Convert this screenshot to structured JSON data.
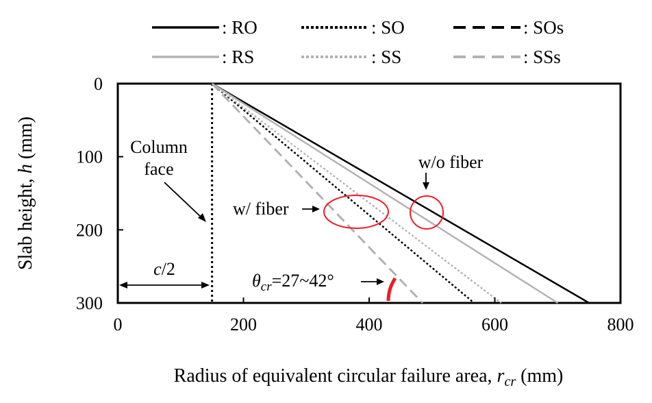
{
  "chart_data": {
    "type": "line",
    "xlabel": "Radius of equivalent circular failure area, ",
    "xlabel_symbol": "r",
    "xlabel_sub": "cr",
    "xlabel_unit": " (mm)",
    "ylabel": "Slab height, ",
    "ylabel_symbol": "h",
    "ylabel_unit": " (mm)",
    "xlim": [
      0,
      800
    ],
    "ylim": [
      0,
      300
    ],
    "y_inverted": true,
    "grid": false,
    "legend_position": "top",
    "xticks": [
      "0",
      "200",
      "400",
      "600",
      "800"
    ],
    "yticks": [
      "0",
      "100",
      "200",
      "300"
    ],
    "series": [
      {
        "name": ": RO",
        "x": [
          150,
          750
        ],
        "y": [
          0,
          300
        ],
        "color": "#000000",
        "style": "solid"
      },
      {
        "name": ": SO",
        "x": [
          150,
          567
        ],
        "y": [
          0,
          300
        ],
        "color": "#000000",
        "style": "dotted"
      },
      {
        "name": ": SOs",
        "x": [
          150,
          485
        ],
        "y": [
          0,
          300
        ],
        "color": "#000000",
        "style": "dashed"
      },
      {
        "name": ": RS",
        "x": [
          150,
          700
        ],
        "y": [
          0,
          300
        ],
        "color": "#b3b3b3",
        "style": "solid"
      },
      {
        "name": ": SS",
        "x": [
          150,
          610
        ],
        "y": [
          0,
          300
        ],
        "color": "#b3b3b3",
        "style": "dotted"
      },
      {
        "name": ": SSs",
        "x": [
          150,
          485
        ],
        "y": [
          0,
          300
        ],
        "color": "#b3b3b3",
        "style": "dashed"
      }
    ],
    "column_face": {
      "x": 150,
      "label_line1": "Column",
      "label_line2": "face",
      "color": "#000000"
    },
    "dimension": {
      "from": 0,
      "to": 150,
      "label_c": "c",
      "label_rest": "/2"
    },
    "annotations": {
      "without_fiber": "w/o fiber",
      "with_fiber": "w/ fiber",
      "theta_symbol": "θ",
      "theta_sub": "cr",
      "theta_value": "=27~42°"
    },
    "highlight_color": "#ee1c25"
  }
}
